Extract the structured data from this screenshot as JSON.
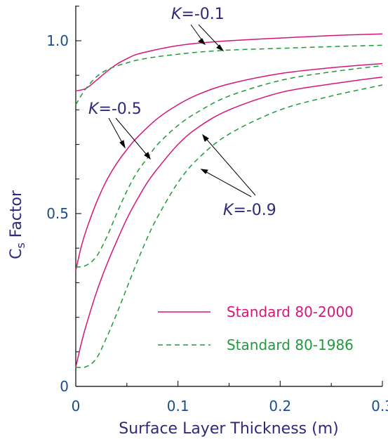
{
  "chart_data": {
    "type": "line",
    "xlabel": "Surface Layer Thickness (m)",
    "ylabel_main": "C",
    "ylabel_sub": "s",
    "ylabel_rest": " Factor",
    "xlim": [
      0,
      0.3
    ],
    "ylim": [
      0,
      1.1
    ],
    "x_ticks": [
      {
        "value": 0,
        "label": "0"
      },
      {
        "value": 0.1,
        "label": "0.1"
      },
      {
        "value": 0.2,
        "label": "0.2"
      },
      {
        "value": 0.3,
        "label": "0.3"
      }
    ],
    "y_ticks": [
      {
        "value": 0,
        "label": "0"
      },
      {
        "value": 0.5,
        "label": "0.5"
      },
      {
        "value": 1.0,
        "label": "1.0"
      }
    ],
    "grid": false,
    "legend_position": "bottom-right",
    "legend": [
      {
        "label": "Standard 80-2000",
        "style": "solid",
        "color": "#d6157a"
      },
      {
        "label": "Standard 80-1986",
        "style": "dashed",
        "color": "#1f9a3c"
      }
    ],
    "series": [
      {
        "standard": "Standard 80-2000",
        "k": "-0.1",
        "style": "solid",
        "color": "#d6157a",
        "points": [
          [
            0,
            0.855
          ],
          [
            0.01,
            0.862
          ],
          [
            0.02,
            0.885
          ],
          [
            0.03,
            0.91
          ],
          [
            0.04,
            0.932
          ],
          [
            0.05,
            0.948
          ],
          [
            0.06,
            0.961
          ],
          [
            0.08,
            0.975
          ],
          [
            0.1,
            0.986
          ],
          [
            0.12,
            0.993
          ],
          [
            0.15,
            1.0
          ],
          [
            0.2,
            1.008
          ],
          [
            0.25,
            1.015
          ],
          [
            0.3,
            1.02
          ]
        ]
      },
      {
        "standard": "Standard 80-1986",
        "k": "-0.1",
        "style": "dashed",
        "color": "#1f9a3c",
        "points": [
          [
            0,
            0.815
          ],
          [
            0.005,
            0.84
          ],
          [
            0.01,
            0.862
          ],
          [
            0.02,
            0.895
          ],
          [
            0.03,
            0.915
          ],
          [
            0.04,
            0.927
          ],
          [
            0.05,
            0.936
          ],
          [
            0.06,
            0.944
          ],
          [
            0.08,
            0.954
          ],
          [
            0.1,
            0.961
          ],
          [
            0.12,
            0.967
          ],
          [
            0.15,
            0.973
          ],
          [
            0.2,
            0.978
          ],
          [
            0.25,
            0.983
          ],
          [
            0.3,
            0.987
          ]
        ]
      },
      {
        "standard": "Standard 80-2000",
        "k": "-0.5",
        "style": "solid",
        "color": "#d6157a",
        "points": [
          [
            0,
            0.335
          ],
          [
            0.005,
            0.4
          ],
          [
            0.01,
            0.45
          ],
          [
            0.02,
            0.53
          ],
          [
            0.03,
            0.595
          ],
          [
            0.04,
            0.645
          ],
          [
            0.05,
            0.685
          ],
          [
            0.06,
            0.72
          ],
          [
            0.08,
            0.775
          ],
          [
            0.1,
            0.815
          ],
          [
            0.12,
            0.845
          ],
          [
            0.15,
            0.875
          ],
          [
            0.2,
            0.905
          ],
          [
            0.25,
            0.922
          ],
          [
            0.3,
            0.934
          ]
        ]
      },
      {
        "standard": "Standard 80-1986",
        "k": "-0.5",
        "style": "dashed",
        "color": "#1f9a3c",
        "points": [
          [
            0,
            0.345
          ],
          [
            0.01,
            0.35
          ],
          [
            0.02,
            0.375
          ],
          [
            0.03,
            0.43
          ],
          [
            0.04,
            0.5
          ],
          [
            0.05,
            0.565
          ],
          [
            0.06,
            0.62
          ],
          [
            0.07,
            0.66
          ],
          [
            0.08,
            0.7
          ],
          [
            0.1,
            0.755
          ],
          [
            0.12,
            0.795
          ],
          [
            0.15,
            0.84
          ],
          [
            0.2,
            0.885
          ],
          [
            0.25,
            0.91
          ],
          [
            0.3,
            0.928
          ]
        ]
      },
      {
        "standard": "Standard 80-2000",
        "k": "-0.9",
        "style": "solid",
        "color": "#d6157a",
        "points": [
          [
            0,
            0.055
          ],
          [
            0.005,
            0.12
          ],
          [
            0.01,
            0.175
          ],
          [
            0.02,
            0.27
          ],
          [
            0.03,
            0.35
          ],
          [
            0.04,
            0.42
          ],
          [
            0.05,
            0.485
          ],
          [
            0.06,
            0.54
          ],
          [
            0.07,
            0.59
          ],
          [
            0.08,
            0.63
          ],
          [
            0.1,
            0.7
          ],
          [
            0.12,
            0.75
          ],
          [
            0.15,
            0.8
          ],
          [
            0.2,
            0.85
          ],
          [
            0.25,
            0.875
          ],
          [
            0.3,
            0.895
          ]
        ]
      },
      {
        "standard": "Standard 80-1986",
        "k": "-0.9",
        "style": "dashed",
        "color": "#1f9a3c",
        "points": [
          [
            0,
            0.055
          ],
          [
            0.01,
            0.057
          ],
          [
            0.02,
            0.08
          ],
          [
            0.03,
            0.14
          ],
          [
            0.04,
            0.21
          ],
          [
            0.05,
            0.285
          ],
          [
            0.06,
            0.36
          ],
          [
            0.07,
            0.43
          ],
          [
            0.08,
            0.49
          ],
          [
            0.1,
            0.59
          ],
          [
            0.12,
            0.66
          ],
          [
            0.15,
            0.73
          ],
          [
            0.2,
            0.8
          ],
          [
            0.25,
            0.84
          ],
          [
            0.3,
            0.872
          ]
        ]
      }
    ],
    "annotations": [
      {
        "k_symbol": "K",
        "k_text": "=-0.1"
      },
      {
        "k_symbol": "K",
        "k_text": "=-0.5"
      },
      {
        "k_symbol": "K",
        "k_text": "=-0.9"
      }
    ]
  }
}
